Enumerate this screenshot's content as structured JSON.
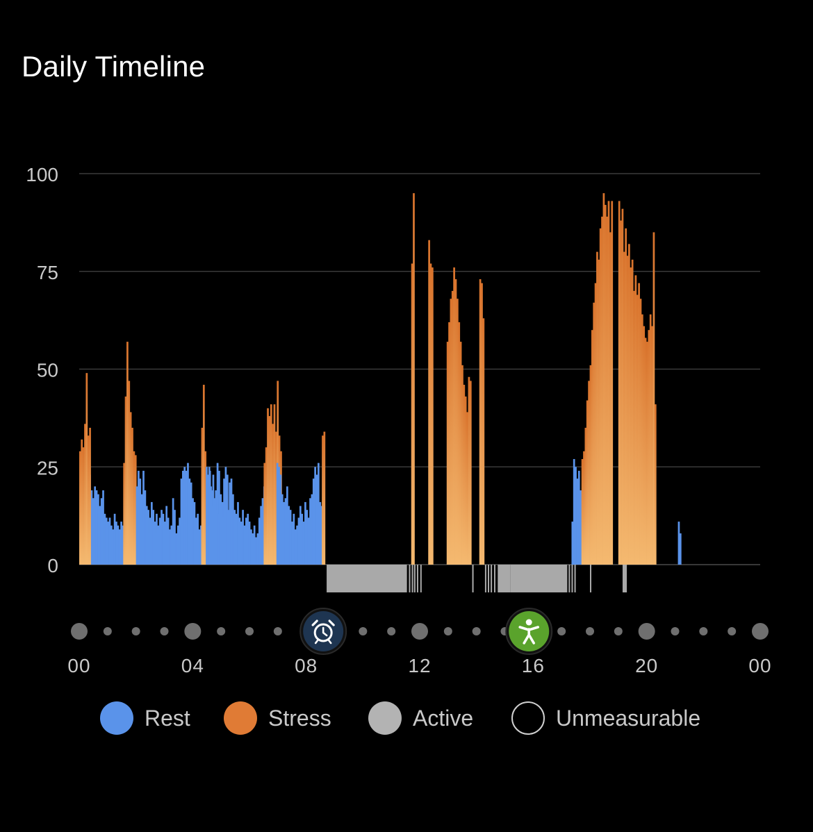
{
  "title": "Daily Timeline",
  "colors": {
    "rest": "#5a93ea",
    "stress_top": "#d9732c",
    "stress_bottom": "#f4b970",
    "active": "#a9a9a9",
    "grid": "#3a3a3a",
    "tick_text": "#c9c9c9",
    "dot": "#6f6f6f",
    "alarm_bg": "#1e3551",
    "activity_bg": "#5aa32c"
  },
  "legend": [
    {
      "key": "rest",
      "label": "Rest",
      "color": "#5a93ea",
      "style": "filled"
    },
    {
      "key": "stress",
      "label": "Stress",
      "color": "#e07b35",
      "style": "filled"
    },
    {
      "key": "active",
      "label": "Active",
      "color": "#b3b3b3",
      "style": "filled"
    },
    {
      "key": "unmeasurable",
      "label": "Unmeasurable",
      "color": "#d0d0d0",
      "style": "outline"
    }
  ],
  "timeline_markers": [
    {
      "name": "alarm-clock-icon",
      "hour": 8.6
    },
    {
      "name": "activity-person-icon",
      "hour": 15.85
    }
  ],
  "chart_data": {
    "type": "bar",
    "title": "Daily Timeline",
    "xlabel": "",
    "ylabel": "",
    "ylim": [
      0,
      100
    ],
    "y_ticks": [
      0,
      25,
      50,
      75,
      100
    ],
    "x_range_hours": [
      0,
      24
    ],
    "x_tick_labels": [
      "00",
      "04",
      "08",
      "12",
      "16",
      "20",
      "00"
    ],
    "x_tick_hours": [
      0,
      4,
      8,
      12,
      16,
      20,
      24
    ],
    "grid": true,
    "legend_position": "bottom",
    "categories": [
      "rest",
      "stress",
      "active"
    ],
    "bar_width_hours": 0.058,
    "segments": [
      {
        "category": "rest",
        "start": 0.0,
        "values": [
          25,
          23,
          20,
          18,
          22,
          26,
          23,
          19,
          17,
          20,
          19,
          18,
          15,
          17,
          19,
          13,
          12,
          11,
          12,
          10,
          9,
          13,
          11,
          10,
          9,
          11,
          10,
          18,
          14,
          11,
          9,
          10,
          11,
          10,
          9,
          8,
          10,
          9,
          11,
          8,
          9,
          7,
          8,
          9,
          6,
          7,
          8
        ]
      },
      {
        "category": "stress",
        "start": 0.0,
        "values": [
          29,
          32,
          30,
          36,
          49,
          33,
          35
        ]
      },
      {
        "category": "stress",
        "start": 1.55,
        "values": [
          26,
          43,
          57,
          47,
          39,
          35,
          29,
          28
        ]
      },
      {
        "category": "rest",
        "start": 2.0,
        "values": [
          20,
          24,
          22,
          18,
          24,
          19,
          15,
          14,
          12,
          16,
          14,
          11,
          13,
          10,
          12,
          14,
          13,
          11,
          15,
          12,
          9,
          10,
          17,
          14,
          8,
          10,
          12,
          22,
          24,
          25,
          24,
          26,
          22,
          21,
          17,
          16,
          12,
          13,
          9,
          10,
          16,
          18,
          22,
          23,
          25,
          20,
          15,
          13,
          19,
          26,
          24,
          18,
          16,
          22,
          25,
          23
        ]
      },
      {
        "category": "stress",
        "start": 4.3,
        "values": [
          35,
          46,
          29
        ]
      },
      {
        "category": "rest",
        "start": 4.46,
        "values": [
          25,
          22,
          24,
          19,
          23,
          17,
          14,
          13,
          11,
          15,
          12,
          17,
          16,
          14,
          21,
          22,
          18,
          14,
          13,
          16,
          12,
          11,
          14,
          10,
          12,
          13,
          11,
          9,
          8,
          10,
          7,
          8,
          12,
          15,
          17,
          20,
          25
        ]
      },
      {
        "category": "stress",
        "start": 6.5,
        "values": [
          26,
          30,
          40,
          38,
          41,
          36,
          41,
          34,
          47,
          33,
          29
        ]
      },
      {
        "category": "rest",
        "start": 6.95,
        "values": [
          26,
          25,
          23,
          18,
          16,
          17,
          20,
          15,
          14,
          11,
          13,
          9,
          10,
          12,
          15,
          13,
          11,
          16,
          14,
          12,
          17,
          18,
          22,
          25,
          23,
          26,
          16,
          15,
          18
        ]
      },
      {
        "category": "stress",
        "start": 8.55,
        "values": [
          33,
          34
        ]
      },
      {
        "category": "stress",
        "start": 11.7,
        "values": [
          77,
          95
        ]
      },
      {
        "category": "stress",
        "start": 12.3,
        "values": [
          83,
          77,
          76
        ]
      },
      {
        "category": "stress",
        "start": 12.95,
        "values": [
          57,
          62,
          68,
          70,
          76,
          73,
          68,
          62,
          57,
          51,
          46,
          43,
          39,
          48,
          47
        ]
      },
      {
        "category": "stress",
        "start": 14.1,
        "values": [
          73,
          72,
          63
        ]
      },
      {
        "category": "rest",
        "start": 17.35,
        "values": [
          11,
          27,
          25,
          22,
          24,
          19
        ]
      },
      {
        "category": "stress",
        "start": 17.7,
        "values": [
          27,
          29,
          35,
          42,
          47,
          51,
          60,
          67,
          72,
          80,
          78,
          86,
          89,
          95,
          92,
          89,
          93,
          85,
          93
        ]
      },
      {
        "category": "stress",
        "start": 19.0,
        "values": [
          93,
          88,
          91,
          80,
          86,
          79,
          82,
          76,
          78,
          70,
          74,
          69,
          72,
          68,
          64,
          61,
          58,
          57,
          60,
          64,
          61,
          85,
          41
        ]
      },
      {
        "category": "rest",
        "start": 21.1,
        "values": [
          11,
          8
        ]
      }
    ],
    "active_segments": [
      [
        8.72,
        11.55
      ],
      [
        11.62,
        11.64
      ],
      [
        11.72,
        11.74
      ],
      [
        11.8,
        11.85
      ],
      [
        11.9,
        11.95
      ],
      [
        12.02,
        12.05
      ],
      [
        13.85,
        13.9
      ],
      [
        14.3,
        14.33
      ],
      [
        14.4,
        14.45
      ],
      [
        14.5,
        14.55
      ],
      [
        14.62,
        14.65
      ],
      [
        14.75,
        15.2
      ],
      [
        15.2,
        17.2
      ],
      [
        17.25,
        17.28
      ],
      [
        17.35,
        17.4
      ],
      [
        17.45,
        17.5
      ],
      [
        18.0,
        18.03
      ],
      [
        19.15,
        19.3
      ]
    ]
  }
}
